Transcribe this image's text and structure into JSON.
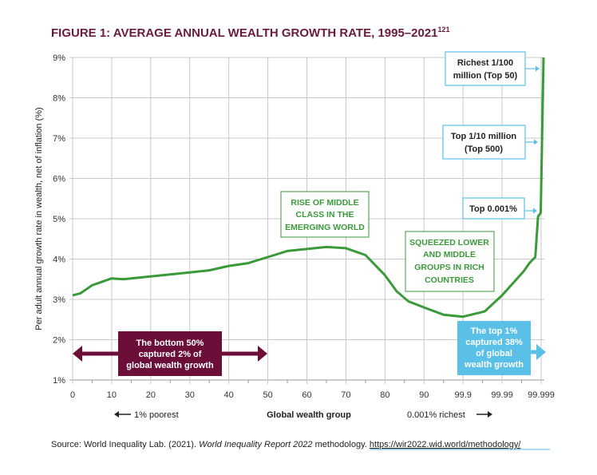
{
  "chart_data": {
    "type": "line",
    "title": "FIGURE 1: AVERAGE ANNUAL WEALTH GROWTH RATE, 1995–2021",
    "title_superscript": "121",
    "ylabel": "Per adult annual growth rate in wealth, net of inflation (%)",
    "xlabel": "Global wealth group",
    "x_left_note": "1% poorest",
    "x_right_note": "0.001% richest",
    "x_ticks": [
      "0",
      "10",
      "20",
      "30",
      "40",
      "50",
      "60",
      "70",
      "80",
      "90",
      "99.9",
      "99.99",
      "99.999"
    ],
    "x_tick_values": [
      0,
      10,
      20,
      30,
      40,
      50,
      60,
      70,
      80,
      90,
      99.9,
      99.99,
      99.999
    ],
    "y_ticks": [
      "1%",
      "2%",
      "3%",
      "4%",
      "5%",
      "6%",
      "7%",
      "8%",
      "9%"
    ],
    "ylim": [
      1,
      9
    ],
    "grid": true,
    "line_color": "#3a9a3a",
    "points": [
      [
        0,
        3.1
      ],
      [
        2,
        3.15
      ],
      [
        5,
        3.35
      ],
      [
        10,
        3.52
      ],
      [
        13,
        3.5
      ],
      [
        20,
        3.57
      ],
      [
        30,
        3.67
      ],
      [
        35,
        3.72
      ],
      [
        40,
        3.83
      ],
      [
        45,
        3.9
      ],
      [
        50,
        4.05
      ],
      [
        55,
        4.2
      ],
      [
        60,
        4.25
      ],
      [
        65,
        4.3
      ],
      [
        70,
        4.27
      ],
      [
        75,
        4.1
      ],
      [
        80,
        3.6
      ],
      [
        83,
        3.2
      ],
      [
        86,
        2.95
      ],
      [
        90,
        2.8
      ],
      [
        94.95,
        2.62
      ],
      [
        99.9,
        2.57
      ],
      [
        99.95,
        2.7
      ],
      [
        99.99,
        3.1
      ],
      [
        99.995,
        3.7
      ],
      [
        99.9963,
        3.9
      ],
      [
        99.99765,
        4.05
      ],
      [
        99.99828,
        5.05
      ],
      [
        99.9989,
        5.15
      ],
      [
        99.999,
        9.0
      ]
    ],
    "annotations": {
      "middle_class": [
        "RISE OF MIDDLE",
        "CLASS IN THE",
        "EMERGING WORLD"
      ],
      "squeezed": [
        "SQUEEZED LOWER",
        "AND MIDDLE",
        "GROUPS IN RICH",
        "COUNTRIES"
      ],
      "bottom50": [
        "The bottom 50%",
        "captured 2% of",
        "global wealth growth"
      ],
      "top1": [
        "The top 1%",
        "captured 38%",
        "of global",
        "wealth growth"
      ],
      "top50": [
        "Richest 1/100",
        "million (Top 50)"
      ],
      "top500": [
        "Top 1/10 million",
        "(Top 500)"
      ],
      "top0001": [
        "Top 0.001%"
      ]
    },
    "colors": {
      "title": "#6b1a3f",
      "bottom50": "#6b0f3a",
      "top1": "#5bc0e8",
      "green": "#3a9a3a",
      "callout_border": "#5bc0e8"
    }
  },
  "source": {
    "prefix": "Source: World Inequality Lab. (2021). ",
    "italic": "World Inequality Report 2022",
    "middle": " methodology. ",
    "link": "https://wir2022.wid.world/methodology/"
  }
}
